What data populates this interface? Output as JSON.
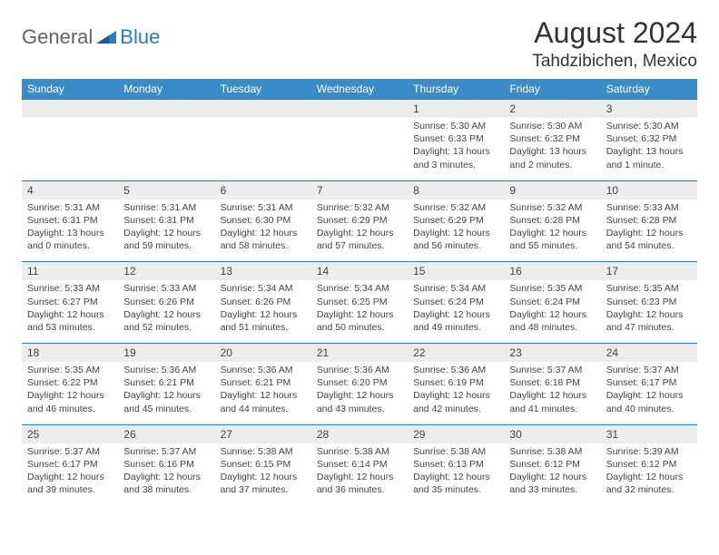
{
  "brand": {
    "part1": "General",
    "part2": "Blue"
  },
  "title": "August 2024",
  "location": "Tahdzibichen, Mexico",
  "day_headers": [
    "Sunday",
    "Monday",
    "Tuesday",
    "Wednesday",
    "Thursday",
    "Friday",
    "Saturday"
  ],
  "colors": {
    "header_bg": "#3b8bc9",
    "header_text": "#ffffff",
    "row_border": "#2b7bbf",
    "numrow_bg": "#eceeee",
    "text": "#444444",
    "brand_gray": "#5f6368",
    "brand_blue": "#2b7bbf"
  },
  "weeks": [
    {
      "nums": [
        "",
        "",
        "",
        "",
        "1",
        "2",
        "3"
      ],
      "details": [
        null,
        null,
        null,
        null,
        {
          "sunrise": "Sunrise: 5:30 AM",
          "sunset": "Sunset: 6:33 PM",
          "day1": "Daylight: 13 hours",
          "day2": "and 3 minutes."
        },
        {
          "sunrise": "Sunrise: 5:30 AM",
          "sunset": "Sunset: 6:32 PM",
          "day1": "Daylight: 13 hours",
          "day2": "and 2 minutes."
        },
        {
          "sunrise": "Sunrise: 5:30 AM",
          "sunset": "Sunset: 6:32 PM",
          "day1": "Daylight: 13 hours",
          "day2": "and 1 minute."
        }
      ]
    },
    {
      "nums": [
        "4",
        "5",
        "6",
        "7",
        "8",
        "9",
        "10"
      ],
      "details": [
        {
          "sunrise": "Sunrise: 5:31 AM",
          "sunset": "Sunset: 6:31 PM",
          "day1": "Daylight: 13 hours",
          "day2": "and 0 minutes."
        },
        {
          "sunrise": "Sunrise: 5:31 AM",
          "sunset": "Sunset: 6:31 PM",
          "day1": "Daylight: 12 hours",
          "day2": "and 59 minutes."
        },
        {
          "sunrise": "Sunrise: 5:31 AM",
          "sunset": "Sunset: 6:30 PM",
          "day1": "Daylight: 12 hours",
          "day2": "and 58 minutes."
        },
        {
          "sunrise": "Sunrise: 5:32 AM",
          "sunset": "Sunset: 6:29 PM",
          "day1": "Daylight: 12 hours",
          "day2": "and 57 minutes."
        },
        {
          "sunrise": "Sunrise: 5:32 AM",
          "sunset": "Sunset: 6:29 PM",
          "day1": "Daylight: 12 hours",
          "day2": "and 56 minutes."
        },
        {
          "sunrise": "Sunrise: 5:32 AM",
          "sunset": "Sunset: 6:28 PM",
          "day1": "Daylight: 12 hours",
          "day2": "and 55 minutes."
        },
        {
          "sunrise": "Sunrise: 5:33 AM",
          "sunset": "Sunset: 6:28 PM",
          "day1": "Daylight: 12 hours",
          "day2": "and 54 minutes."
        }
      ]
    },
    {
      "nums": [
        "11",
        "12",
        "13",
        "14",
        "15",
        "16",
        "17"
      ],
      "details": [
        {
          "sunrise": "Sunrise: 5:33 AM",
          "sunset": "Sunset: 6:27 PM",
          "day1": "Daylight: 12 hours",
          "day2": "and 53 minutes."
        },
        {
          "sunrise": "Sunrise: 5:33 AM",
          "sunset": "Sunset: 6:26 PM",
          "day1": "Daylight: 12 hours",
          "day2": "and 52 minutes."
        },
        {
          "sunrise": "Sunrise: 5:34 AM",
          "sunset": "Sunset: 6:26 PM",
          "day1": "Daylight: 12 hours",
          "day2": "and 51 minutes."
        },
        {
          "sunrise": "Sunrise: 5:34 AM",
          "sunset": "Sunset: 6:25 PM",
          "day1": "Daylight: 12 hours",
          "day2": "and 50 minutes."
        },
        {
          "sunrise": "Sunrise: 5:34 AM",
          "sunset": "Sunset: 6:24 PM",
          "day1": "Daylight: 12 hours",
          "day2": "and 49 minutes."
        },
        {
          "sunrise": "Sunrise: 5:35 AM",
          "sunset": "Sunset: 6:24 PM",
          "day1": "Daylight: 12 hours",
          "day2": "and 48 minutes."
        },
        {
          "sunrise": "Sunrise: 5:35 AM",
          "sunset": "Sunset: 6:23 PM",
          "day1": "Daylight: 12 hours",
          "day2": "and 47 minutes."
        }
      ]
    },
    {
      "nums": [
        "18",
        "19",
        "20",
        "21",
        "22",
        "23",
        "24"
      ],
      "details": [
        {
          "sunrise": "Sunrise: 5:35 AM",
          "sunset": "Sunset: 6:22 PM",
          "day1": "Daylight: 12 hours",
          "day2": "and 46 minutes."
        },
        {
          "sunrise": "Sunrise: 5:36 AM",
          "sunset": "Sunset: 6:21 PM",
          "day1": "Daylight: 12 hours",
          "day2": "and 45 minutes."
        },
        {
          "sunrise": "Sunrise: 5:36 AM",
          "sunset": "Sunset: 6:21 PM",
          "day1": "Daylight: 12 hours",
          "day2": "and 44 minutes."
        },
        {
          "sunrise": "Sunrise: 5:36 AM",
          "sunset": "Sunset: 6:20 PM",
          "day1": "Daylight: 12 hours",
          "day2": "and 43 minutes."
        },
        {
          "sunrise": "Sunrise: 5:36 AM",
          "sunset": "Sunset: 6:19 PM",
          "day1": "Daylight: 12 hours",
          "day2": "and 42 minutes."
        },
        {
          "sunrise": "Sunrise: 5:37 AM",
          "sunset": "Sunset: 6:18 PM",
          "day1": "Daylight: 12 hours",
          "day2": "and 41 minutes."
        },
        {
          "sunrise": "Sunrise: 5:37 AM",
          "sunset": "Sunset: 6:17 PM",
          "day1": "Daylight: 12 hours",
          "day2": "and 40 minutes."
        }
      ]
    },
    {
      "nums": [
        "25",
        "26",
        "27",
        "28",
        "29",
        "30",
        "31"
      ],
      "details": [
        {
          "sunrise": "Sunrise: 5:37 AM",
          "sunset": "Sunset: 6:17 PM",
          "day1": "Daylight: 12 hours",
          "day2": "and 39 minutes."
        },
        {
          "sunrise": "Sunrise: 5:37 AM",
          "sunset": "Sunset: 6:16 PM",
          "day1": "Daylight: 12 hours",
          "day2": "and 38 minutes."
        },
        {
          "sunrise": "Sunrise: 5:38 AM",
          "sunset": "Sunset: 6:15 PM",
          "day1": "Daylight: 12 hours",
          "day2": "and 37 minutes."
        },
        {
          "sunrise": "Sunrise: 5:38 AM",
          "sunset": "Sunset: 6:14 PM",
          "day1": "Daylight: 12 hours",
          "day2": "and 36 minutes."
        },
        {
          "sunrise": "Sunrise: 5:38 AM",
          "sunset": "Sunset: 6:13 PM",
          "day1": "Daylight: 12 hours",
          "day2": "and 35 minutes."
        },
        {
          "sunrise": "Sunrise: 5:38 AM",
          "sunset": "Sunset: 6:12 PM",
          "day1": "Daylight: 12 hours",
          "day2": "and 33 minutes."
        },
        {
          "sunrise": "Sunrise: 5:39 AM",
          "sunset": "Sunset: 6:12 PM",
          "day1": "Daylight: 12 hours",
          "day2": "and 32 minutes."
        }
      ]
    }
  ]
}
